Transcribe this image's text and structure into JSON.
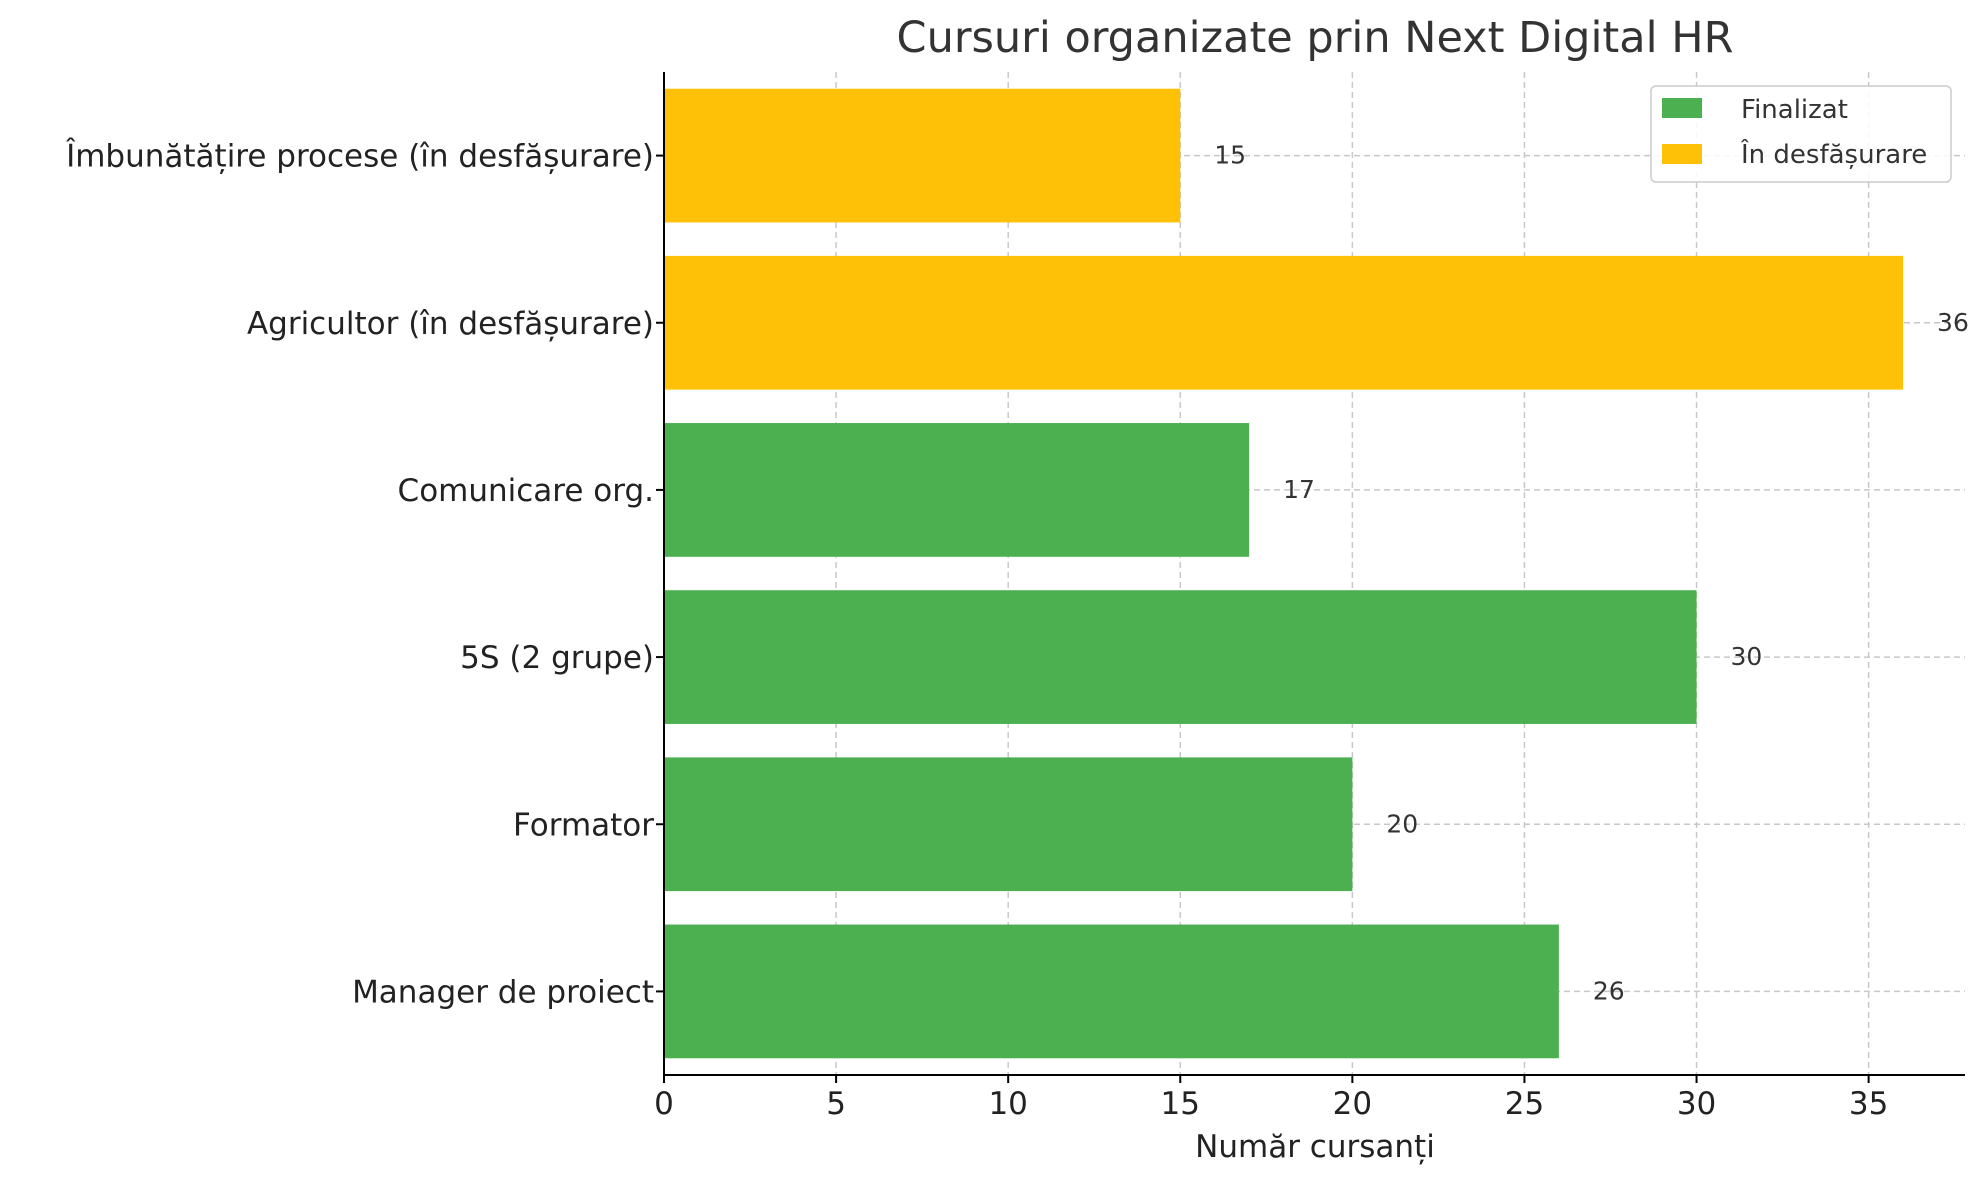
{
  "chart_data": {
    "type": "bar",
    "orientation": "horizontal",
    "title": "Cursuri organizate prin Next Digital HR",
    "xlabel": "Număr cursanți",
    "ylabel": "",
    "xlim": [
      0,
      37.8
    ],
    "xticks": [
      0,
      5,
      10,
      15,
      20,
      25,
      30,
      35
    ],
    "grid": true,
    "legend_position": "top-right",
    "categories": [
      "Manager de proiect",
      "Formator",
      "5S (2 grupe)",
      "Comunicare org.",
      "Agricultor (în desfășurare)",
      "Îmbunătățire procese (în desfășurare)"
    ],
    "values": [
      26,
      20,
      30,
      17,
      36,
      15
    ],
    "status": [
      "Finalizat",
      "Finalizat",
      "Finalizat",
      "Finalizat",
      "În desfășurare",
      "În desfășurare"
    ],
    "legend": [
      {
        "label": "Finalizat",
        "color": "#4caf50"
      },
      {
        "label": "În desfășurare",
        "color": "#ffc107"
      }
    ]
  }
}
